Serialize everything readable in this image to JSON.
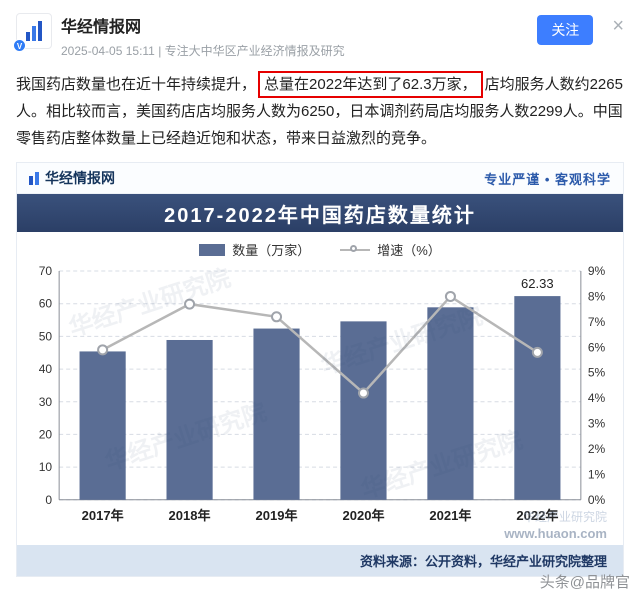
{
  "header": {
    "name": "华经情报网",
    "meta": "2025-04-05 15:11 | 专注大中华区产业经济情报及研究",
    "follow_label": "关注",
    "close_label": "×",
    "badge": "V"
  },
  "article": {
    "text_before": "我国药店数量也在近十年持续提升，",
    "highlight": "总量在2022年达到了62.3万家，",
    "text_after": "店均服务人数约2265人。相比较而言，美国药店店均服务人数为6250，日本调剂药局店均服务人数2299人。中国零售药店整体数量上已经趋近饱和状态，带来日益激烈的竞争。"
  },
  "chart_card": {
    "brand": "华经情报网",
    "slogan": "专业严谨 • 客观科学",
    "source_note": "资料来源：公开资料，华经产业研究院整理",
    "watermark": "华经产业研究院",
    "watermark_url": "www.huaon.com"
  },
  "chart_data": {
    "type": "bar",
    "title": "2017-2022年中国药店数量统计",
    "categories": [
      "2017年",
      "2018年",
      "2019年",
      "2020年",
      "2021年",
      "2022年"
    ],
    "series": [
      {
        "name": "数量（万家）",
        "type": "bar",
        "axis": "left",
        "color": "#5a6d94",
        "values": [
          45.4,
          48.9,
          52.4,
          54.6,
          58.9,
          62.33
        ]
      },
      {
        "name": "增速（%）",
        "type": "line",
        "axis": "right",
        "color": "#b7b7b7",
        "values": [
          5.9,
          7.7,
          7.2,
          4.2,
          8.0,
          5.8
        ]
      }
    ],
    "ylim_left": [
      0,
      70
    ],
    "yticks_left": [
      "0",
      "10",
      "20",
      "30",
      "40",
      "50",
      "60",
      "70"
    ],
    "ylim_right": [
      0,
      9
    ],
    "yticks_right": [
      "0%",
      "1%",
      "2%",
      "3%",
      "4%",
      "5%",
      "6%",
      "7%",
      "8%",
      "9%"
    ],
    "bar_label": {
      "index": 5,
      "text": "62.33"
    },
    "legend_position": "top",
    "grid": "dashed-horizontal"
  },
  "colors": {
    "accent_blue": "#3d7eff",
    "highlight_red": "#e60000",
    "banner_navy": "#2e4570",
    "bar_blue": "#5a6d94",
    "line_gray": "#b7b7b7",
    "source_bg": "#d9e4f1"
  },
  "page_watermark": "头条@品牌官"
}
